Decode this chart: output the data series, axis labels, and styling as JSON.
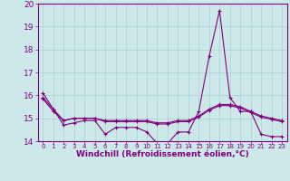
{
  "x": [
    0,
    1,
    2,
    3,
    4,
    5,
    6,
    7,
    8,
    9,
    10,
    11,
    12,
    13,
    14,
    15,
    16,
    17,
    18,
    19,
    20,
    21,
    22,
    23
  ],
  "series1": [
    16.1,
    15.4,
    14.7,
    14.8,
    14.9,
    14.9,
    14.3,
    14.6,
    14.6,
    14.6,
    14.4,
    13.9,
    13.9,
    14.4,
    14.4,
    15.3,
    17.7,
    19.7,
    15.9,
    15.3,
    15.3,
    14.3,
    14.2,
    14.2
  ],
  "series2": [
    15.9,
    15.4,
    14.9,
    15.0,
    15.0,
    15.0,
    14.9,
    14.9,
    14.9,
    14.9,
    14.9,
    14.8,
    14.8,
    14.9,
    14.9,
    15.1,
    15.4,
    15.6,
    15.6,
    15.5,
    15.3,
    15.1,
    15.0,
    14.9
  ],
  "series3": [
    15.85,
    15.3,
    14.9,
    15.0,
    15.0,
    15.0,
    14.85,
    14.85,
    14.85,
    14.85,
    14.85,
    14.75,
    14.75,
    14.85,
    14.85,
    15.05,
    15.35,
    15.55,
    15.55,
    15.45,
    15.25,
    15.05,
    14.95,
    14.85
  ],
  "line_color": "#800080",
  "marker": "+",
  "marker_size": 3,
  "background_color": "#cce8e8",
  "grid_color": "#aad0d0",
  "xlabel": "Windchill (Refroidissement éolien,°C)",
  "ylim": [
    14,
    20
  ],
  "xlim": [
    -0.5,
    23.5
  ],
  "yticks": [
    14,
    15,
    16,
    17,
    18,
    19,
    20
  ],
  "xticks": [
    0,
    1,
    2,
    3,
    4,
    5,
    6,
    7,
    8,
    9,
    10,
    11,
    12,
    13,
    14,
    15,
    16,
    17,
    18,
    19,
    20,
    21,
    22,
    23
  ],
  "ytick_fontsize": 6.5,
  "xtick_fontsize": 5.0,
  "xlabel_fontsize": 6.5
}
